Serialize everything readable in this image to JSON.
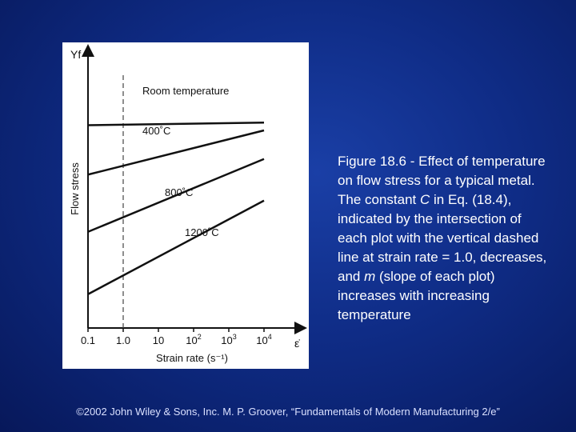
{
  "caption": {
    "fig_label": "Figure 18.6 ‑ Effect of temperature on flow stress for a typical metal. The constant ",
    "c_symbol": "C",
    "part2": " in Eq. (18.4), indicated by the intersection of each plot with the vertical dashed line at strain rate = 1.0, decreases, and ",
    "m_symbol": "m",
    "part3": " (slope of each plot) increases with increasing temperature"
  },
  "footer": {
    "text": "©2002 John Wiley & Sons, Inc. M. P. Groover, “Fundamentals of Modern Manufacturing 2/e”"
  },
  "chart_data": {
    "type": "line",
    "x_scale": "log",
    "xlabel": "Strain rate (s⁻¹)",
    "ylabel": "Flow stress",
    "y_axis_symbol": "Yf",
    "x_axis_symbol": "ε̇",
    "x_ticks": [
      {
        "value": 0.1,
        "label": "0.1"
      },
      {
        "value": 1,
        "label": "1.0"
      },
      {
        "value": 10,
        "label": "10"
      },
      {
        "value": 100,
        "label": "10",
        "sup": "2"
      },
      {
        "value": 1000,
        "label": "10",
        "sup": "3"
      },
      {
        "value": 10000,
        "label": "10",
        "sup": "4"
      }
    ],
    "xlim": [
      0.1,
      10000
    ],
    "ylim": [
      0,
      100
    ],
    "reference_line": {
      "x": 1,
      "style": "dashed"
    },
    "grid": false,
    "series": [
      {
        "name": "Room temperature",
        "x": [
          0.1,
          10000
        ],
        "y": [
          78,
          79
        ]
      },
      {
        "name": "400˚C",
        "x": [
          0.1,
          10000
        ],
        "y": [
          59,
          76
        ]
      },
      {
        "name": "800˚C",
        "x": [
          0.1,
          10000
        ],
        "y": [
          37,
          65
        ]
      },
      {
        "name": "1200˚C",
        "x": [
          0.1,
          10000
        ],
        "y": [
          13,
          49
        ]
      }
    ]
  }
}
